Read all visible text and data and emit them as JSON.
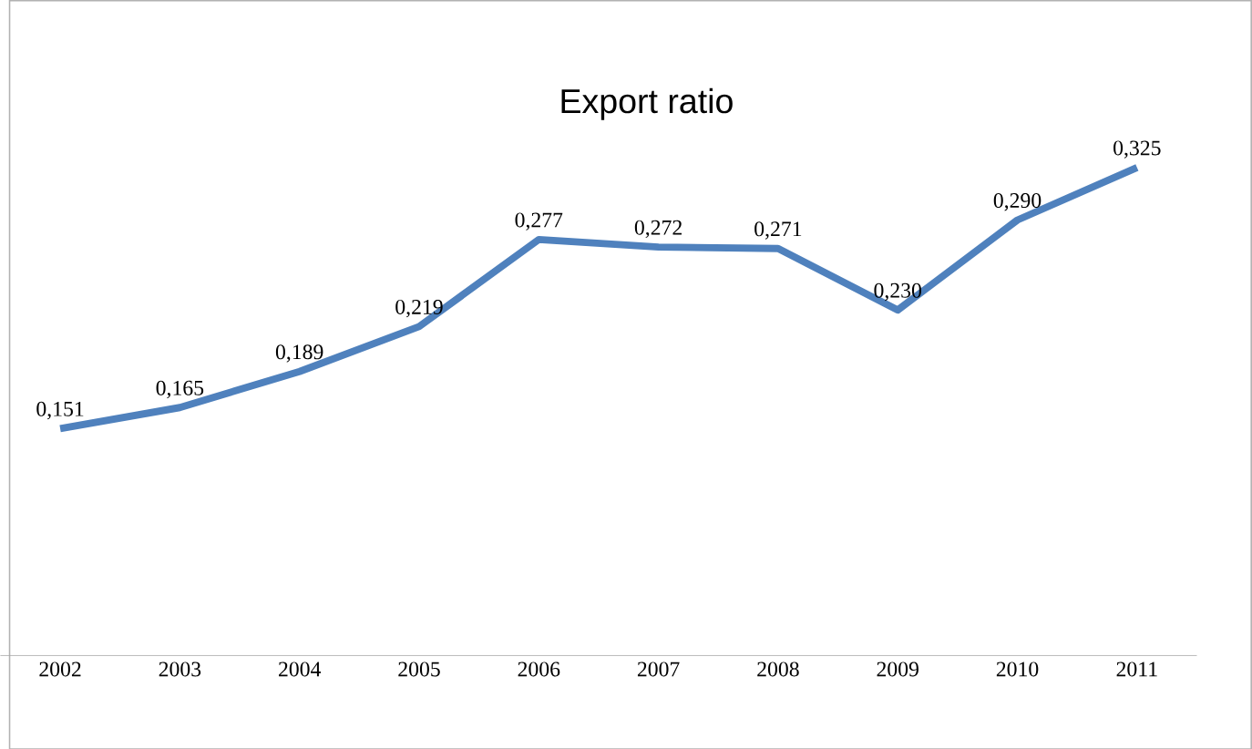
{
  "chart_data": {
    "type": "line",
    "title": "Export ratio",
    "categories": [
      "2002",
      "2003",
      "2004",
      "2005",
      "2006",
      "2007",
      "2008",
      "2009",
      "2010",
      "2011"
    ],
    "values": [
      0.151,
      0.165,
      0.189,
      0.219,
      0.277,
      0.272,
      0.271,
      0.23,
      0.29,
      0.325
    ],
    "value_labels": [
      "0,151",
      "0,165",
      "0,189",
      "0,219",
      "0,277",
      "0,272",
      "0,271",
      "0,230",
      "0,290",
      "0,325"
    ],
    "color": "#4f81bd",
    "line_style": "solid",
    "tick_labels": "x"
  }
}
